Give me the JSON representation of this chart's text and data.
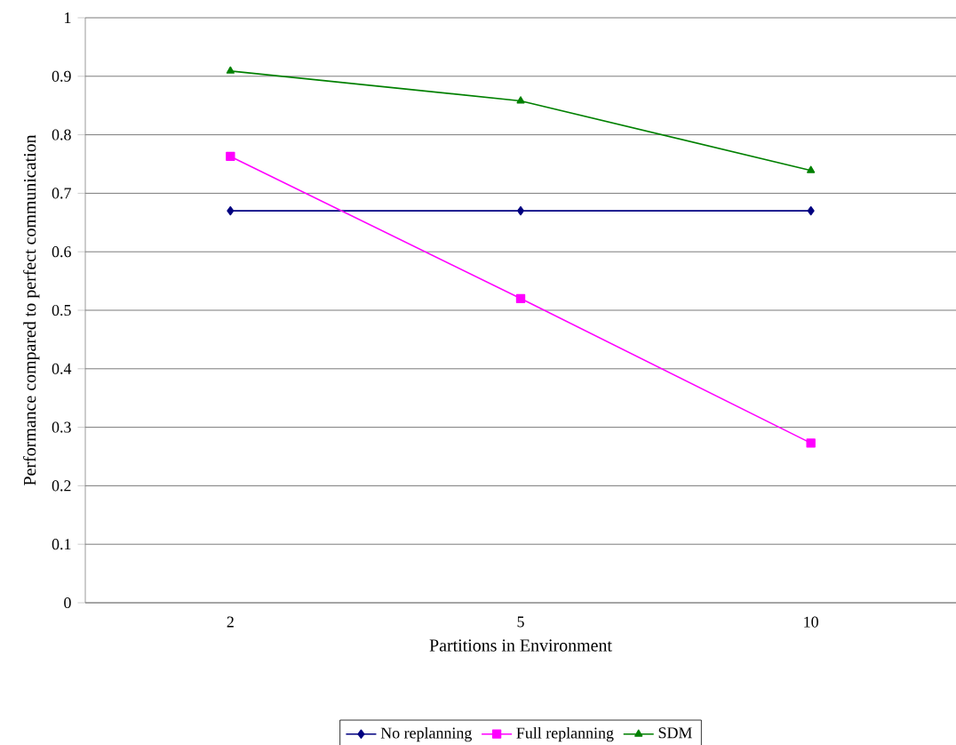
{
  "chart_data": {
    "type": "line",
    "xlabel": "Partitions in Environment",
    "ylabel": "Performance compared to perfect communication",
    "categories": [
      "2",
      "5",
      "10"
    ],
    "series": [
      {
        "name": "No replanning",
        "color": "#000080",
        "marker": "diamond",
        "values": [
          0.67,
          0.67,
          0.67
        ]
      },
      {
        "name": "Full replanning",
        "color": "#ff00ff",
        "marker": "square",
        "values": [
          0.763,
          0.52,
          0.273
        ]
      },
      {
        "name": "SDM",
        "color": "#008000",
        "marker": "triangle",
        "values": [
          0.909,
          0.858,
          0.739
        ]
      }
    ],
    "ylim": [
      0,
      1
    ],
    "yticks": [
      0,
      0.1,
      0.2,
      0.3,
      0.4,
      0.5,
      0.6,
      0.7,
      0.8,
      0.9,
      1
    ],
    "grid": "y",
    "legend": "bottom"
  }
}
